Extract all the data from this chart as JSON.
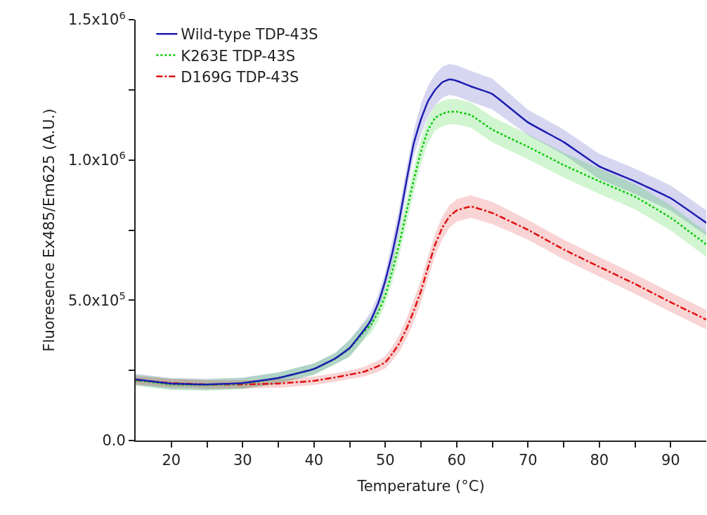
{
  "chart_data": {
    "type": "line",
    "xlabel": "Temperature (°C)",
    "ylabel": "Fluoresence Ex485/Em625 (A.U.)",
    "x": [
      15,
      20,
      25,
      30,
      35,
      40,
      43,
      45,
      47,
      48,
      49,
      50,
      51,
      52,
      53,
      54,
      55,
      56,
      57,
      58,
      59,
      60,
      62,
      65,
      70,
      75,
      80,
      85,
      90,
      95
    ],
    "xlim": [
      15,
      95
    ],
    "xticks": [
      20,
      {
        "value": 25,
        "label": null
      },
      30,
      {
        "value": 35,
        "label": null
      },
      40,
      {
        "value": 45,
        "label": null
      },
      50,
      {
        "value": 55,
        "label": null
      },
      60,
      {
        "value": 65,
        "label": null
      },
      70,
      {
        "value": 75,
        "label": null
      },
      80,
      {
        "value": 85,
        "label": null
      },
      90
    ],
    "ylim": [
      0,
      1500000
    ],
    "yticks": [
      {
        "value": 0,
        "label": "0.0"
      },
      {
        "value": 250000,
        "label": null
      },
      {
        "value": 500000,
        "label": "5.0x10$^{5}$"
      },
      {
        "value": 750000,
        "label": null
      },
      {
        "value": 1000000,
        "label": "1.0x10$^{6}$"
      },
      {
        "value": 1250000,
        "label": null
      },
      {
        "value": 1500000,
        "label": "1.5x10$^{6}$"
      }
    ],
    "grid": false,
    "legend": "top left",
    "marker": "none",
    "series": [
      {
        "name": "Wild-type TDP-43S",
        "color": "#1c1cb0",
        "line_style": "solid",
        "values": [
          218000,
          203000,
          200000,
          205000,
          223000,
          255000,
          293000,
          330000,
          393000,
          430000,
          490000,
          570000,
          670000,
          790000,
          930000,
          1060000,
          1145000,
          1210000,
          1250000,
          1277000,
          1287000,
          1282000,
          1262000,
          1235000,
          1134000,
          1064000,
          977000,
          924000,
          864000,
          776000
        ],
        "lower": [
          198000,
          183000,
          180000,
          185000,
          203000,
          235000,
          273000,
          300000,
          363000,
          400000,
          460000,
          540000,
          625000,
          745000,
          885000,
          1015000,
          1090000,
          1155000,
          1195000,
          1222000,
          1232000,
          1227000,
          1207000,
          1180000,
          1089000,
          1019000,
          932000,
          879000,
          819000,
          731000
        ],
        "upper": [
          238000,
          223000,
          220000,
          225000,
          243000,
          275000,
          313000,
          360000,
          423000,
          460000,
          520000,
          600000,
          715000,
          835000,
          975000,
          1105000,
          1200000,
          1265000,
          1305000,
          1332000,
          1342000,
          1337000,
          1317000,
          1290000,
          1179000,
          1109000,
          1022000,
          969000,
          909000,
          821000
        ]
      },
      {
        "name": "K263E TDP-43S",
        "color": "#00c800",
        "line_style": "dotted",
        "values": [
          215000,
          200000,
          198000,
          203000,
          222000,
          255000,
          292000,
          328000,
          388000,
          413000,
          456000,
          518000,
          606000,
          706000,
          819000,
          930000,
          1030000,
          1107000,
          1150000,
          1165000,
          1172000,
          1172000,
          1160000,
          1108000,
          1047000,
          982000,
          924000,
          869000,
          794000,
          699000
        ],
        "lower": [
          195000,
          180000,
          178000,
          183000,
          202000,
          235000,
          272000,
          298000,
          358000,
          383000,
          426000,
          488000,
          566000,
          661000,
          774000,
          885000,
          985000,
          1062000,
          1105000,
          1120000,
          1127000,
          1127000,
          1115000,
          1063000,
          1002000,
          937000,
          879000,
          824000,
          749000,
          654000
        ],
        "upper": [
          235000,
          220000,
          218000,
          223000,
          242000,
          275000,
          312000,
          358000,
          418000,
          443000,
          486000,
          548000,
          646000,
          751000,
          864000,
          975000,
          1075000,
          1152000,
          1195000,
          1210000,
          1217000,
          1217000,
          1205000,
          1153000,
          1092000,
          1027000,
          969000,
          914000,
          839000,
          744000
        ]
      },
      {
        "name": "D169G TDP-43S",
        "color": "#e01010",
        "line_style": "dashdot",
        "values": [
          215000,
          205000,
          200000,
          200000,
          203000,
          213000,
          225000,
          235000,
          245000,
          255000,
          265000,
          279000,
          310000,
          348000,
          400000,
          463000,
          533000,
          618000,
          699000,
          759000,
          799000,
          820000,
          834000,
          811000,
          751000,
          681000,
          619000,
          558000,
          493000,
          431000
        ],
        "lower": [
          200000,
          190000,
          185000,
          185000,
          188000,
          198000,
          210000,
          220000,
          228000,
          236000,
          245000,
          257000,
          285000,
          318000,
          365000,
          423000,
          493000,
          578000,
          659000,
          719000,
          759000,
          780000,
          794000,
          771000,
          716000,
          646000,
          584000,
          523000,
          458000,
          396000
        ],
        "upper": [
          230000,
          220000,
          215000,
          215000,
          218000,
          228000,
          240000,
          250000,
          262000,
          274000,
          285000,
          301000,
          335000,
          378000,
          435000,
          503000,
          573000,
          658000,
          739000,
          799000,
          839000,
          860000,
          874000,
          851000,
          786000,
          716000,
          654000,
          593000,
          528000,
          466000
        ]
      }
    ]
  }
}
